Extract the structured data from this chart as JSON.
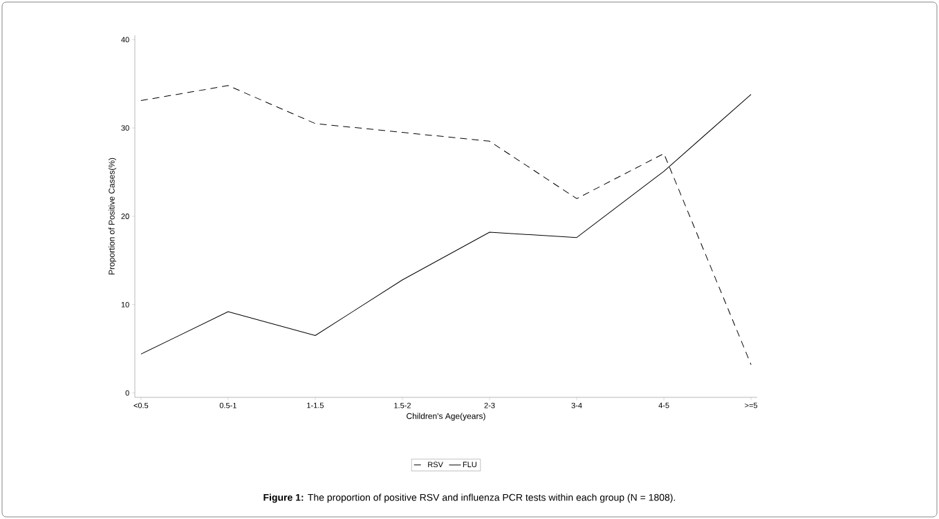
{
  "chart_data": {
    "type": "line",
    "xlabel": "Children's Age(years)",
    "ylabel": "Proportion of Positive Cases(%)",
    "categories": [
      "<0.5",
      "0.5-1",
      "1-1.5",
      "1.5-2",
      "2-3",
      "3-4",
      "4-5",
      ">=5"
    ],
    "series": [
      {
        "name": "RSV",
        "color": "#000000",
        "line_style": "dashed",
        "values": [
          33.1,
          34.8,
          30.5,
          29.5,
          28.5,
          22.0,
          27.1,
          3.2
        ]
      },
      {
        "name": "FLU",
        "color": "#000000",
        "line_style": "solid",
        "values": [
          4.4,
          9.2,
          6.5,
          12.8,
          18.2,
          17.6,
          25.1,
          33.8
        ]
      }
    ],
    "ylim": [
      -0.5,
      40.5
    ],
    "yticks": [
      0,
      10,
      20,
      30,
      40
    ],
    "grid": false,
    "legend": "bottom",
    "marker": "none",
    "annotations": [
      "**Figure 1:** The proportion of positive RSV and influenza PCR tests within each group (N = 1808)."
    ]
  }
}
